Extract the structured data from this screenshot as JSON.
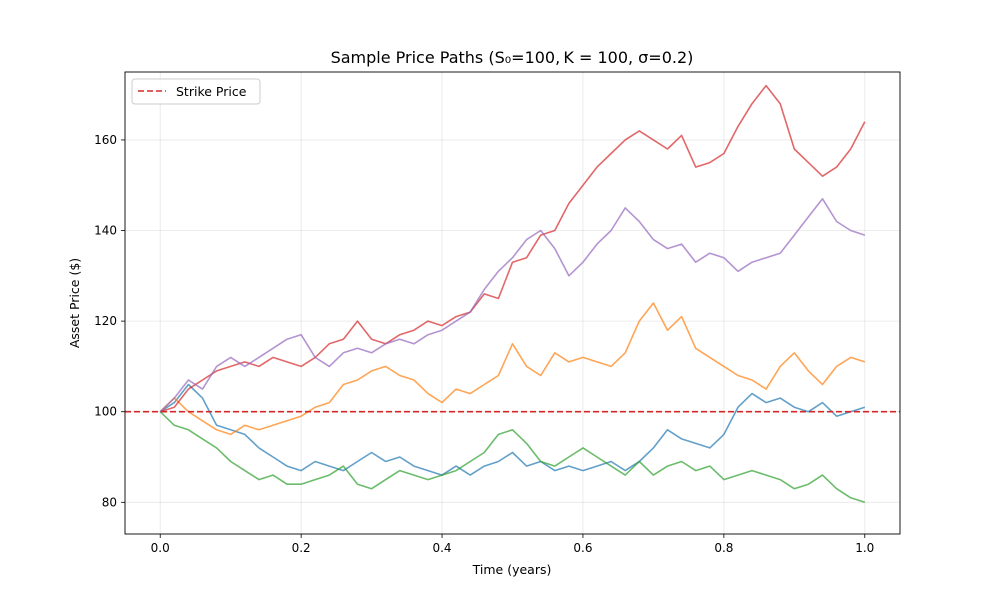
{
  "chart_data": {
    "type": "line",
    "title": "Sample Price Paths (S₀=100, K = 100, σ=0.2)",
    "xlabel": "Time (years)",
    "ylabel": "Asset Price ($)",
    "xlim": [
      -0.05,
      1.05
    ],
    "ylim": [
      73,
      175
    ],
    "xticks": [
      0.0,
      0.2,
      0.4,
      0.6,
      0.8,
      1.0
    ],
    "xtick_labels": [
      "0.0",
      "0.2",
      "0.4",
      "0.6",
      "0.8",
      "1.0"
    ],
    "yticks": [
      80,
      100,
      120,
      140,
      160
    ],
    "ytick_labels": [
      "80",
      "100",
      "120",
      "140",
      "160"
    ],
    "grid": true,
    "legend_position": "top-left",
    "strike": {
      "name": "Strike Price",
      "value": 100,
      "color": "#d62728",
      "style": "dashed"
    },
    "series": [
      {
        "color": "#1f77b4",
        "x": [
          0,
          0.02,
          0.04,
          0.06,
          0.08,
          0.1,
          0.12,
          0.14,
          0.16,
          0.18,
          0.2,
          0.22,
          0.24,
          0.26,
          0.28,
          0.3,
          0.32,
          0.34,
          0.36,
          0.38,
          0.4,
          0.42,
          0.44,
          0.46,
          0.48,
          0.5,
          0.52,
          0.54,
          0.56,
          0.58,
          0.6,
          0.62,
          0.64,
          0.66,
          0.68,
          0.7,
          0.72,
          0.74,
          0.76,
          0.78,
          0.8,
          0.82,
          0.84,
          0.86,
          0.88,
          0.9,
          0.92,
          0.94,
          0.96,
          0.98,
          1.0
        ],
        "y": [
          100,
          102,
          106,
          103,
          97,
          96,
          95,
          92,
          90,
          88,
          87,
          89,
          88,
          87,
          89,
          91,
          89,
          90,
          88,
          87,
          86,
          88,
          86,
          88,
          89,
          91,
          88,
          89,
          87,
          88,
          87,
          88,
          89,
          87,
          89,
          92,
          96,
          94,
          93,
          92,
          95,
          101,
          104,
          102,
          103,
          101,
          100,
          102,
          99,
          100,
          101
        ]
      },
      {
        "color": "#ff7f0e",
        "x": [
          0,
          0.02,
          0.04,
          0.06,
          0.08,
          0.1,
          0.12,
          0.14,
          0.16,
          0.18,
          0.2,
          0.22,
          0.24,
          0.26,
          0.28,
          0.3,
          0.32,
          0.34,
          0.36,
          0.38,
          0.4,
          0.42,
          0.44,
          0.46,
          0.48,
          0.5,
          0.52,
          0.54,
          0.56,
          0.58,
          0.6,
          0.62,
          0.64,
          0.66,
          0.68,
          0.7,
          0.72,
          0.74,
          0.76,
          0.78,
          0.8,
          0.82,
          0.84,
          0.86,
          0.88,
          0.9,
          0.92,
          0.94,
          0.96,
          0.98,
          1.0
        ],
        "y": [
          100,
          103,
          100,
          98,
          96,
          95,
          97,
          96,
          97,
          98,
          99,
          101,
          102,
          106,
          107,
          109,
          110,
          108,
          107,
          104,
          102,
          105,
          104,
          106,
          108,
          115,
          110,
          108,
          113,
          111,
          112,
          111,
          110,
          113,
          120,
          124,
          118,
          121,
          114,
          112,
          110,
          108,
          107,
          105,
          110,
          113,
          109,
          106,
          110,
          112,
          111
        ]
      },
      {
        "color": "#2ca02c",
        "x": [
          0,
          0.02,
          0.04,
          0.06,
          0.08,
          0.1,
          0.12,
          0.14,
          0.16,
          0.18,
          0.2,
          0.22,
          0.24,
          0.26,
          0.28,
          0.3,
          0.32,
          0.34,
          0.36,
          0.38,
          0.4,
          0.42,
          0.44,
          0.46,
          0.48,
          0.5,
          0.52,
          0.54,
          0.56,
          0.58,
          0.6,
          0.62,
          0.64,
          0.66,
          0.68,
          0.7,
          0.72,
          0.74,
          0.76,
          0.78,
          0.8,
          0.82,
          0.84,
          0.86,
          0.88,
          0.9,
          0.92,
          0.94,
          0.96,
          0.98,
          1.0
        ],
        "y": [
          100,
          97,
          96,
          94,
          92,
          89,
          87,
          85,
          86,
          84,
          84,
          85,
          86,
          88,
          84,
          83,
          85,
          87,
          86,
          85,
          86,
          87,
          89,
          91,
          95,
          96,
          93,
          89,
          88,
          90,
          92,
          90,
          88,
          86,
          89,
          86,
          88,
          89,
          87,
          88,
          85,
          86,
          87,
          86,
          85,
          83,
          84,
          86,
          83,
          81,
          80
        ]
      },
      {
        "color": "#d62728",
        "x": [
          0,
          0.02,
          0.04,
          0.06,
          0.08,
          0.1,
          0.12,
          0.14,
          0.16,
          0.18,
          0.2,
          0.22,
          0.24,
          0.26,
          0.28,
          0.3,
          0.32,
          0.34,
          0.36,
          0.38,
          0.4,
          0.42,
          0.44,
          0.46,
          0.48,
          0.5,
          0.52,
          0.54,
          0.56,
          0.58,
          0.6,
          0.62,
          0.64,
          0.66,
          0.68,
          0.7,
          0.72,
          0.74,
          0.76,
          0.78,
          0.8,
          0.82,
          0.84,
          0.86,
          0.88,
          0.9,
          0.92,
          0.94,
          0.96,
          0.98,
          1.0
        ],
        "y": [
          100,
          101,
          105,
          107,
          109,
          110,
          111,
          110,
          112,
          111,
          110,
          112,
          115,
          116,
          120,
          116,
          115,
          117,
          118,
          120,
          119,
          121,
          122,
          126,
          125,
          133,
          134,
          139,
          140,
          146,
          150,
          154,
          157,
          160,
          162,
          160,
          158,
          161,
          154,
          155,
          157,
          163,
          168,
          172,
          168,
          158,
          155,
          152,
          154,
          158,
          164
        ]
      },
      {
        "color": "#9467bd",
        "x": [
          0,
          0.02,
          0.04,
          0.06,
          0.08,
          0.1,
          0.12,
          0.14,
          0.16,
          0.18,
          0.2,
          0.22,
          0.24,
          0.26,
          0.28,
          0.3,
          0.32,
          0.34,
          0.36,
          0.38,
          0.4,
          0.42,
          0.44,
          0.46,
          0.48,
          0.5,
          0.52,
          0.54,
          0.56,
          0.58,
          0.6,
          0.62,
          0.64,
          0.66,
          0.68,
          0.7,
          0.72,
          0.74,
          0.76,
          0.78,
          0.8,
          0.82,
          0.84,
          0.86,
          0.88,
          0.9,
          0.92,
          0.94,
          0.96,
          0.98,
          1.0
        ],
        "y": [
          100,
          103,
          107,
          105,
          110,
          112,
          110,
          112,
          114,
          116,
          117,
          112,
          110,
          113,
          114,
          113,
          115,
          116,
          115,
          117,
          118,
          120,
          122,
          127,
          131,
          134,
          138,
          140,
          136,
          130,
          133,
          137,
          140,
          145,
          142,
          138,
          136,
          137,
          133,
          135,
          134,
          131,
          133,
          134,
          135,
          139,
          143,
          147,
          142,
          140,
          139
        ]
      }
    ]
  }
}
